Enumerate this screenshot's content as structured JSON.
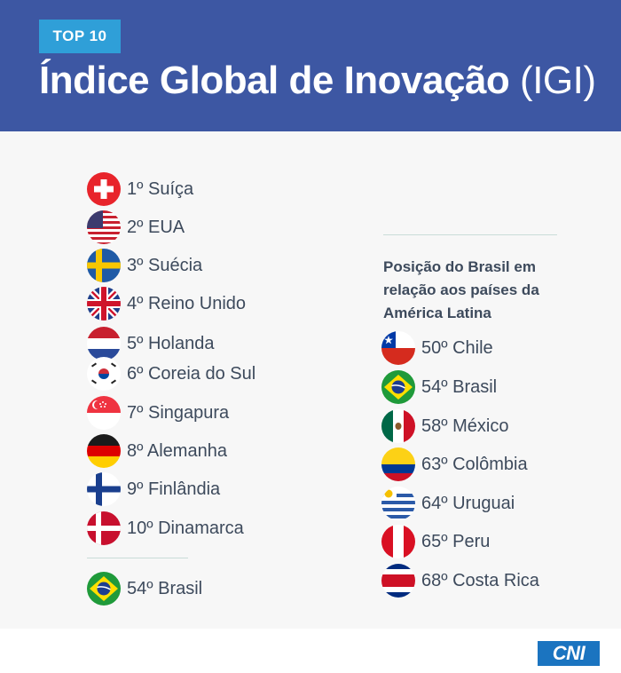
{
  "header": {
    "tag": "TOP 10",
    "title_main": "Índice Global de Inovação",
    "title_abbr": "(IGI)",
    "background": "#3d57a3",
    "tag_color": "#2f9fd8"
  },
  "top10": [
    {
      "label": "1º Suíça",
      "icon": "switzerland-flag-icon"
    },
    {
      "label": "2º EUA",
      "icon": "usa-flag-icon"
    },
    {
      "label": "3º Suécia",
      "icon": "sweden-flag-icon"
    },
    {
      "label": "4º Reino Unido",
      "icon": "uk-flag-icon"
    },
    {
      "label": "5º Holanda",
      "icon": "netherlands-flag-icon"
    },
    {
      "label": "6º Coreia do Sul",
      "icon": "south-korea-flag-icon"
    },
    {
      "label": "7º Singapura",
      "icon": "singapore-flag-icon"
    },
    {
      "label": "8º Alemanha",
      "icon": "germany-flag-icon"
    },
    {
      "label": "9º Finlândia",
      "icon": "finland-flag-icon"
    },
    {
      "label": "10º Dinamarca",
      "icon": "denmark-flag-icon"
    }
  ],
  "brazil_global": {
    "label": "54º Brasil",
    "icon": "brazil-flag-icon"
  },
  "latam": {
    "heading": "Posição do Brasil em relação aos países da América Latina",
    "items": [
      {
        "label": "50º Chile",
        "icon": "chile-flag-icon"
      },
      {
        "label": "54º Brasil",
        "icon": "brazil-flag-icon"
      },
      {
        "label": "58º México",
        "icon": "mexico-flag-icon"
      },
      {
        "label": "63º Colômbia",
        "icon": "colombia-flag-icon"
      },
      {
        "label": "64º Uruguai",
        "icon": "uruguay-flag-icon"
      },
      {
        "label": "65º Peru",
        "icon": "peru-flag-icon"
      },
      {
        "label": "68º Costa Rica",
        "icon": "costa-rica-flag-icon"
      }
    ]
  },
  "footer": {
    "logo_text": "CNI",
    "logo_color": "#1b74c0"
  }
}
